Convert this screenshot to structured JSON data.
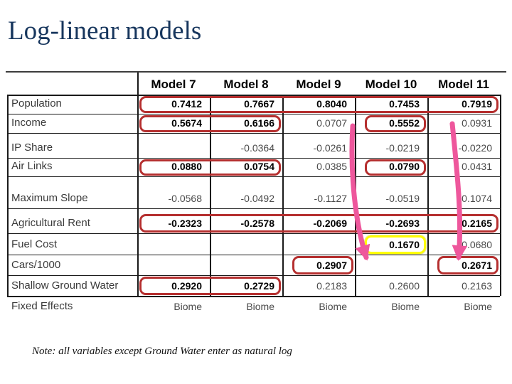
{
  "title": "Log-linear models",
  "note": "Note: all variables except Ground Water enter as natural log",
  "colors": {
    "title_navy": "#17365d",
    "box_red": "#b52f2f",
    "box_yellow": "#ffff00",
    "arrow_pink": "#ee579c"
  },
  "table": {
    "columns": [
      "Model 7",
      "Model 8",
      "Model 9",
      "Model 10",
      "Model 11"
    ],
    "rows": [
      {
        "label": "Population",
        "values": [
          "0.7412",
          "0.7667",
          "0.8040",
          "0.7453",
          "0.7919"
        ],
        "strong": [
          true,
          true,
          true,
          true,
          true
        ]
      },
      {
        "label": "Income",
        "values": [
          "0.5674",
          "0.6166",
          "0.0707",
          "0.5552",
          "0.0931"
        ],
        "strong": [
          true,
          true,
          false,
          true,
          false
        ]
      },
      {
        "label": "IP Share",
        "values": [
          "",
          "-0.0364",
          "-0.0261",
          "-0.0219",
          "-0.0220"
        ],
        "strong": [
          false,
          false,
          false,
          false,
          false
        ]
      },
      {
        "label": "Air Links",
        "values": [
          "0.0880",
          "0.0754",
          "0.0385",
          "0.0790",
          "0.0431"
        ],
        "strong": [
          true,
          true,
          false,
          true,
          false
        ]
      },
      {
        "label": "Maximum Slope",
        "values": [
          "-0.0568",
          "-0.0492",
          "-0.1127",
          "-0.0519",
          "-0.1074"
        ],
        "strong": [
          false,
          false,
          false,
          false,
          false
        ]
      },
      {
        "label": "Agricultural Rent",
        "values": [
          "-0.2323",
          "-0.2578",
          "-0.2069",
          "-0.2693",
          "-0.2165"
        ],
        "strong": [
          true,
          true,
          true,
          true,
          true
        ]
      },
      {
        "label": "Fuel Cost",
        "values": [
          "",
          "",
          "",
          "0.1670",
          "0.0680"
        ],
        "strong": [
          false,
          false,
          false,
          true,
          false
        ]
      },
      {
        "label": "Cars/1000",
        "values": [
          "",
          "",
          "0.2907",
          "",
          "0.2671"
        ],
        "strong": [
          false,
          false,
          true,
          false,
          true
        ]
      },
      {
        "label": "Shallow Ground Water",
        "values": [
          "0.2920",
          "0.2729",
          "0.2183",
          "0.2600",
          "0.2163"
        ],
        "strong": [
          true,
          true,
          false,
          false,
          false
        ]
      },
      {
        "label": "Fixed Effects",
        "values": [
          "Biome",
          "Biome",
          "Biome",
          "Biome",
          "Biome"
        ],
        "strong": [
          false,
          false,
          false,
          false,
          false
        ],
        "outside": true
      }
    ]
  },
  "highlights": [
    {
      "row": 0,
      "c0": 0,
      "c1": 4,
      "color": "red"
    },
    {
      "row": 1,
      "c0": 0,
      "c1": 1,
      "color": "red"
    },
    {
      "row": 1,
      "c0": 3,
      "c1": 3,
      "color": "red",
      "tight": true
    },
    {
      "row": 3,
      "c0": 0,
      "c1": 1,
      "color": "red"
    },
    {
      "row": 3,
      "c0": 3,
      "c1": 3,
      "color": "red",
      "tight": true
    },
    {
      "row": 5,
      "c0": 0,
      "c1": 4,
      "color": "red"
    },
    {
      "row": 6,
      "c0": 3,
      "c1": 3,
      "color": "yellow",
      "tight": true
    },
    {
      "row": 7,
      "c0": 2,
      "c1": 2,
      "color": "red",
      "tight": true
    },
    {
      "row": 7,
      "c0": 4,
      "c1": 4,
      "color": "red",
      "tight": true
    },
    {
      "row": 8,
      "c0": 0,
      "c1": 1,
      "color": "red"
    }
  ],
  "annotations": {
    "arrows": [
      {
        "from": "Income 0.0707 (Model 9)",
        "to": "Cars/1000 0.2907 (Model 9)"
      },
      {
        "from": "Income 0.0931 (Model 11)",
        "to": "Cars/1000 0.2671 (Model 11)"
      }
    ]
  }
}
